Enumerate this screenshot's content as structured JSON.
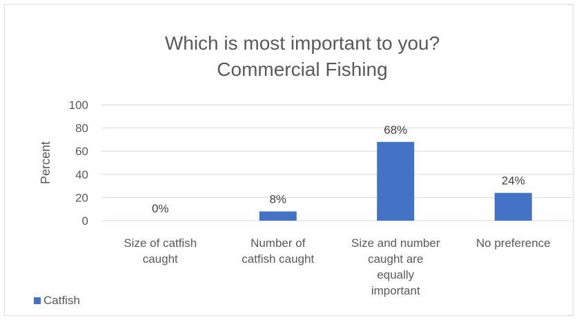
{
  "chart_data": {
    "type": "bar",
    "title": [
      "Which is most important to you?",
      "Commercial Fishing"
    ],
    "ylabel": "Percent",
    "xlabel": "",
    "ylim": [
      0,
      100
    ],
    "yticks": [
      "0",
      "20",
      "40",
      "60",
      "80",
      "100"
    ],
    "categories": [
      [
        "Size of catfish",
        "caught"
      ],
      [
        "Number of",
        "catfish caught"
      ],
      [
        "Size and number",
        "caught are",
        "equally",
        "important"
      ],
      [
        "No preference"
      ]
    ],
    "series": [
      {
        "name": "Catfish",
        "values": [
          0,
          8,
          68,
          24
        ],
        "labels": [
          "0%",
          "8%",
          "68%",
          "24%"
        ],
        "color": "#4472C4"
      }
    ],
    "grid": true,
    "legend_position": "bottom-left"
  }
}
